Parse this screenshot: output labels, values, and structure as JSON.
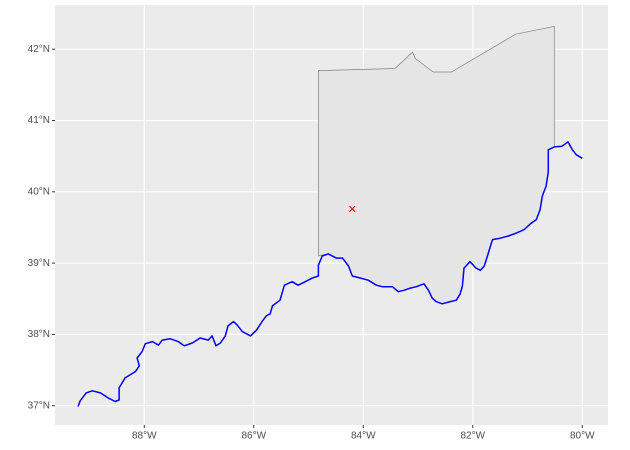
{
  "chart_data": {
    "type": "map",
    "xlim": [
      -89.63,
      -79.53
    ],
    "ylim": [
      36.73,
      42.62
    ],
    "xticks": [
      {
        "value": -88,
        "label": "88°W"
      },
      {
        "value": -86,
        "label": "86°W"
      },
      {
        "value": -84,
        "label": "84°W"
      },
      {
        "value": -82,
        "label": "82°W"
      },
      {
        "value": -80,
        "label": "80°W"
      }
    ],
    "yticks": [
      {
        "value": 37,
        "label": "37°N"
      },
      {
        "value": 38,
        "label": "38°N"
      },
      {
        "value": 39,
        "label": "39°N"
      },
      {
        "value": 40,
        "label": "40°N"
      },
      {
        "value": 41,
        "label": "41°N"
      },
      {
        "value": 42,
        "label": "42°N"
      }
    ],
    "grid": true,
    "regions": [
      {
        "fill": "#e5e5e5",
        "stroke": "#808080",
        "lon": [
          -84.82,
          -83.42,
          -83.1,
          -83.05,
          -82.72,
          -82.39,
          -81.22,
          -80.51,
          -80.51,
          -80.62,
          -80.62,
          -80.62,
          -80.66,
          -80.73,
          -80.77,
          -80.84,
          -80.95,
          -81.06,
          -81.21,
          -81.35,
          -81.5,
          -81.64,
          -81.72,
          -81.79,
          -81.86,
          -81.94,
          -82.05,
          -82.16,
          -82.19,
          -82.23,
          -82.3,
          -82.41,
          -82.56,
          -82.67,
          -82.74,
          -82.81,
          -82.89,
          -83.03,
          -83.14,
          -83.25,
          -83.36,
          -83.47,
          -83.65,
          -83.76,
          -83.91,
          -84.05,
          -84.2,
          -84.27,
          -84.38,
          -84.49,
          -84.64,
          -84.82
        ],
        "lat": [
          41.7,
          41.73,
          41.96,
          41.87,
          41.68,
          41.68,
          42.21,
          42.32,
          40.63,
          40.59,
          40.45,
          40.28,
          40.08,
          39.94,
          39.75,
          39.61,
          39.55,
          39.47,
          39.42,
          39.38,
          39.35,
          39.33,
          39.13,
          38.96,
          38.9,
          38.93,
          39.02,
          38.93,
          38.68,
          38.57,
          38.48,
          38.46,
          38.43,
          38.46,
          38.51,
          38.62,
          38.71,
          38.67,
          38.65,
          38.62,
          38.6,
          38.67,
          38.67,
          38.69,
          38.76,
          38.79,
          38.82,
          38.96,
          39.07,
          39.07,
          39.13,
          39.1
        ]
      }
    ],
    "lines": [
      {
        "color": "#0000ff",
        "lon": [
          -89.21,
          -89.17,
          -89.06,
          -88.95,
          -88.8,
          -88.66,
          -88.53,
          -88.46,
          -88.46,
          -88.35,
          -88.16,
          -88.09,
          -88.13,
          -88.04,
          -87.98,
          -87.85,
          -87.74,
          -87.67,
          -87.53,
          -87.38,
          -87.27,
          -87.12,
          -86.98,
          -86.83,
          -86.76,
          -86.69,
          -86.61,
          -86.52,
          -86.47,
          -86.37,
          -86.3,
          -86.21,
          -86.06,
          -85.95,
          -85.85,
          -85.77,
          -85.7,
          -85.66,
          -85.52,
          -85.44,
          -85.3,
          -85.19,
          -85.06,
          -84.93,
          -84.82,
          -84.82,
          -84.75,
          -84.64,
          -84.49,
          -84.38,
          -84.27,
          -84.2,
          -84.05,
          -83.91,
          -83.76,
          -83.65,
          -83.47,
          -83.36,
          -83.25,
          -83.14,
          -83.03,
          -82.89,
          -82.81,
          -82.74,
          -82.67,
          -82.56,
          -82.41,
          -82.3,
          -82.23,
          -82.19,
          -82.16,
          -82.05,
          -81.94,
          -81.86,
          -81.79,
          -81.72,
          -81.64,
          -81.5,
          -81.35,
          -81.21,
          -81.06,
          -80.95,
          -80.84,
          -80.77,
          -80.73,
          -80.66,
          -80.62,
          -80.62,
          -80.62,
          -80.51,
          -80.37,
          -80.26,
          -80.18,
          -80.11,
          -80.0
        ],
        "lat": [
          36.99,
          37.07,
          37.18,
          37.21,
          37.18,
          37.11,
          37.06,
          37.08,
          37.25,
          37.39,
          37.48,
          37.56,
          37.67,
          37.76,
          37.87,
          37.9,
          37.85,
          37.92,
          37.94,
          37.9,
          37.84,
          37.88,
          37.95,
          37.92,
          37.98,
          37.84,
          37.88,
          37.98,
          38.12,
          38.18,
          38.13,
          38.04,
          37.98,
          38.06,
          38.18,
          38.26,
          38.29,
          38.4,
          38.48,
          38.69,
          38.74,
          38.69,
          38.74,
          38.79,
          38.82,
          38.97,
          39.1,
          39.13,
          39.07,
          39.07,
          38.96,
          38.82,
          38.79,
          38.76,
          38.69,
          38.67,
          38.67,
          38.6,
          38.62,
          38.65,
          38.67,
          38.71,
          38.62,
          38.51,
          38.46,
          38.43,
          38.46,
          38.48,
          38.57,
          38.68,
          38.93,
          39.02,
          38.93,
          38.9,
          38.96,
          39.13,
          39.33,
          39.35,
          39.38,
          39.42,
          39.47,
          39.55,
          39.61,
          39.75,
          39.94,
          40.08,
          40.28,
          40.45,
          40.59,
          40.63,
          40.64,
          40.7,
          40.59,
          40.52,
          40.47
        ]
      }
    ],
    "points": [
      {
        "lon": -84.2,
        "lat": 39.76,
        "color": "#ff0000"
      }
    ]
  }
}
